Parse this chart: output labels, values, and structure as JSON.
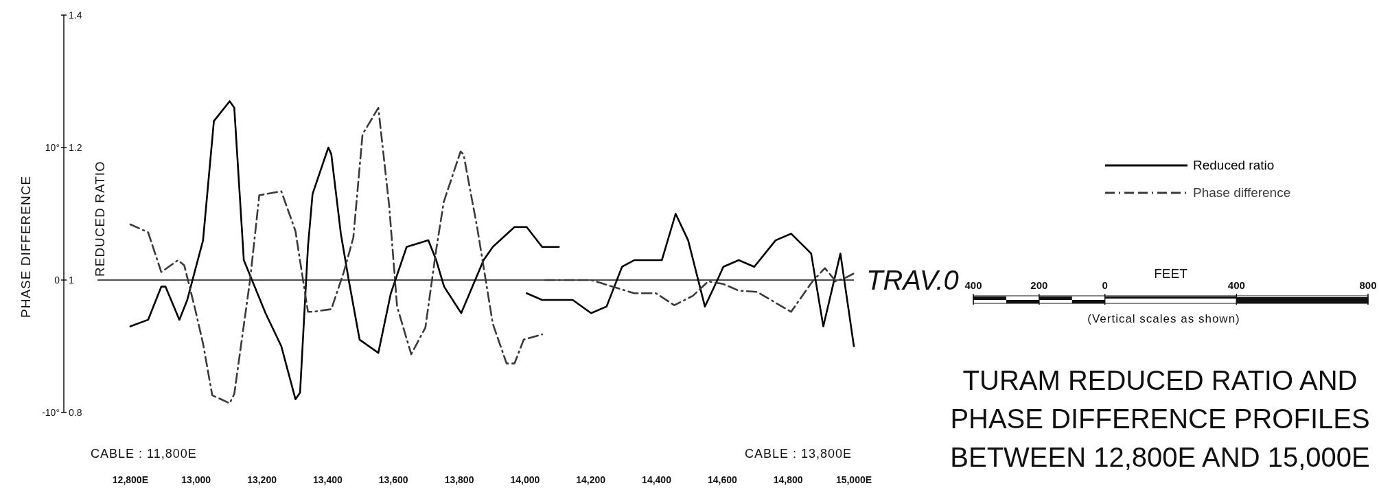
{
  "chart_data": [
    {
      "type": "line",
      "ylabel": "REDUCED RATIO",
      "y2label": "PHASE DIFFERENCE",
      "xlim": [
        12700,
        15000
      ],
      "xticks": [
        {
          "value": 12800,
          "label": "12,800E"
        },
        {
          "value": 13000,
          "label": "13,000"
        },
        {
          "value": 13200,
          "label": "13,200"
        },
        {
          "value": 13400,
          "label": "13,400"
        },
        {
          "value": 13600,
          "label": "13,600"
        },
        {
          "value": 13800,
          "label": "13,800"
        },
        {
          "value": 14000,
          "label": "14,000"
        },
        {
          "value": 14200,
          "label": "14,200"
        },
        {
          "value": 14400,
          "label": "14,400"
        },
        {
          "value": 14600,
          "label": "14,600"
        },
        {
          "value": 14800,
          "label": "14,800"
        },
        {
          "value": 15000,
          "label": "15,000E"
        }
      ],
      "ylim": [
        0.8,
        1.4
      ],
      "yticks": [
        0.8,
        1.0,
        1.2,
        1.4
      ],
      "y2lim": [
        -10,
        20
      ],
      "y2ticks": [
        {
          "value": -10,
          "label": "-10°"
        },
        {
          "value": 0,
          "label": "0"
        },
        {
          "value": 10,
          "label": "10°"
        }
      ],
      "ref_lines": [
        {
          "axis": "y",
          "value": 1.0,
          "label": "TRAV.0"
        }
      ],
      "annotations": [
        "CABLE : 11,800E",
        "CABLE : 13,800E"
      ],
      "legend": "right",
      "grid": false,
      "series": [
        {
          "name": "Reduced ratio",
          "color": "#000000",
          "line_style": "solid",
          "x": [
            12800,
            12854,
            12894,
            12907,
            12949,
            12973,
            13021,
            13054,
            13102,
            13116,
            13145,
            13211,
            13259,
            13302,
            13316,
            13340,
            13354,
            13402,
            13411,
            13440,
            13464,
            13497,
            13554,
            13592,
            13640,
            13706,
            13730,
            13754,
            13806,
            13874,
            13902,
            13968,
            14005,
            14052,
            14103,
            14060,
            14005,
            14052,
            14145,
            14201,
            14248,
            14295,
            14332,
            14416,
            14458,
            14496,
            14547,
            14585,
            14603,
            14650,
            14697,
            14762,
            14809,
            14870,
            14907,
            14959,
            15000
          ],
          "values": [
            0.93,
            0.94,
            0.99,
            0.99,
            0.94,
            0.97,
            1.06,
            1.24,
            1.27,
            1.26,
            1.03,
            0.95,
            0.9,
            0.82,
            0.83,
            1.05,
            1.13,
            1.2,
            1.19,
            1.07,
            1.0,
            0.91,
            0.89,
            0.98,
            1.05,
            1.06,
            1.03,
            0.99,
            0.95,
            1.03,
            1.05,
            1.08,
            1.08,
            1.05,
            1.05,
            null,
            0.98,
            0.97,
            0.97,
            0.95,
            0.96,
            1.02,
            1.03,
            1.03,
            1.1,
            1.06,
            0.96,
            1.0,
            1.02,
            1.03,
            1.02,
            1.06,
            1.07,
            1.04,
            0.93,
            1.04,
            0.9
          ]
        },
        {
          "name": "Phase difference",
          "color": "#3a3a3a",
          "line_style": "dashed",
          "axis": "y2",
          "x": [
            12800,
            12854,
            12894,
            12945,
            12964,
            12997,
            13021,
            13049,
            13102,
            13116,
            13164,
            13192,
            13259,
            13302,
            13340,
            13354,
            13411,
            13449,
            13478,
            13506,
            13554,
            13587,
            13611,
            13654,
            13697,
            13730,
            13753,
            13804,
            13813,
            13855,
            13902,
            13944,
            13968,
            13996,
            14052,
            14056,
            14061,
            14201,
            14267,
            14332,
            14398,
            14454,
            14510,
            14557,
            14603,
            14650,
            14706,
            14809,
            14874,
            14912,
            14945,
            14977,
            15000
          ],
          "values": [
            4.2,
            3.6,
            0.6,
            1.5,
            1.1,
            -2.2,
            -4.8,
            -8.7,
            -9.3,
            -8.6,
            0,
            6.4,
            6.7,
            3.7,
            -2.4,
            -2.4,
            -2.2,
            0.6,
            3.2,
            11.0,
            13.0,
            5.6,
            -2.0,
            -5.6,
            -3.6,
            2.3,
            5.9,
            9.7,
            9.5,
            3.9,
            -3.3,
            -6.3,
            -6.3,
            -4.5,
            -4.1,
            null,
            0,
            0,
            -0.5,
            -1.0,
            -1.0,
            -1.9,
            -1.2,
            -0.1,
            -0.3,
            -0.8,
            -0.9,
            -2.4,
            -0.1,
            0.9,
            -0.1,
            0.2,
            0.5
          ]
        }
      ]
    },
    {
      "type": "other",
      "title": "TURAM REDUCED RATIO AND\nPHASE DIFFERENCE PROFILES\nBETWEEN 12,800E AND 15,000E",
      "xlabel": "(Vertical scales as shown)",
      "annotations": [
        "FEET",
        "400",
        "200",
        "0",
        "400",
        "800"
      ]
    }
  ]
}
